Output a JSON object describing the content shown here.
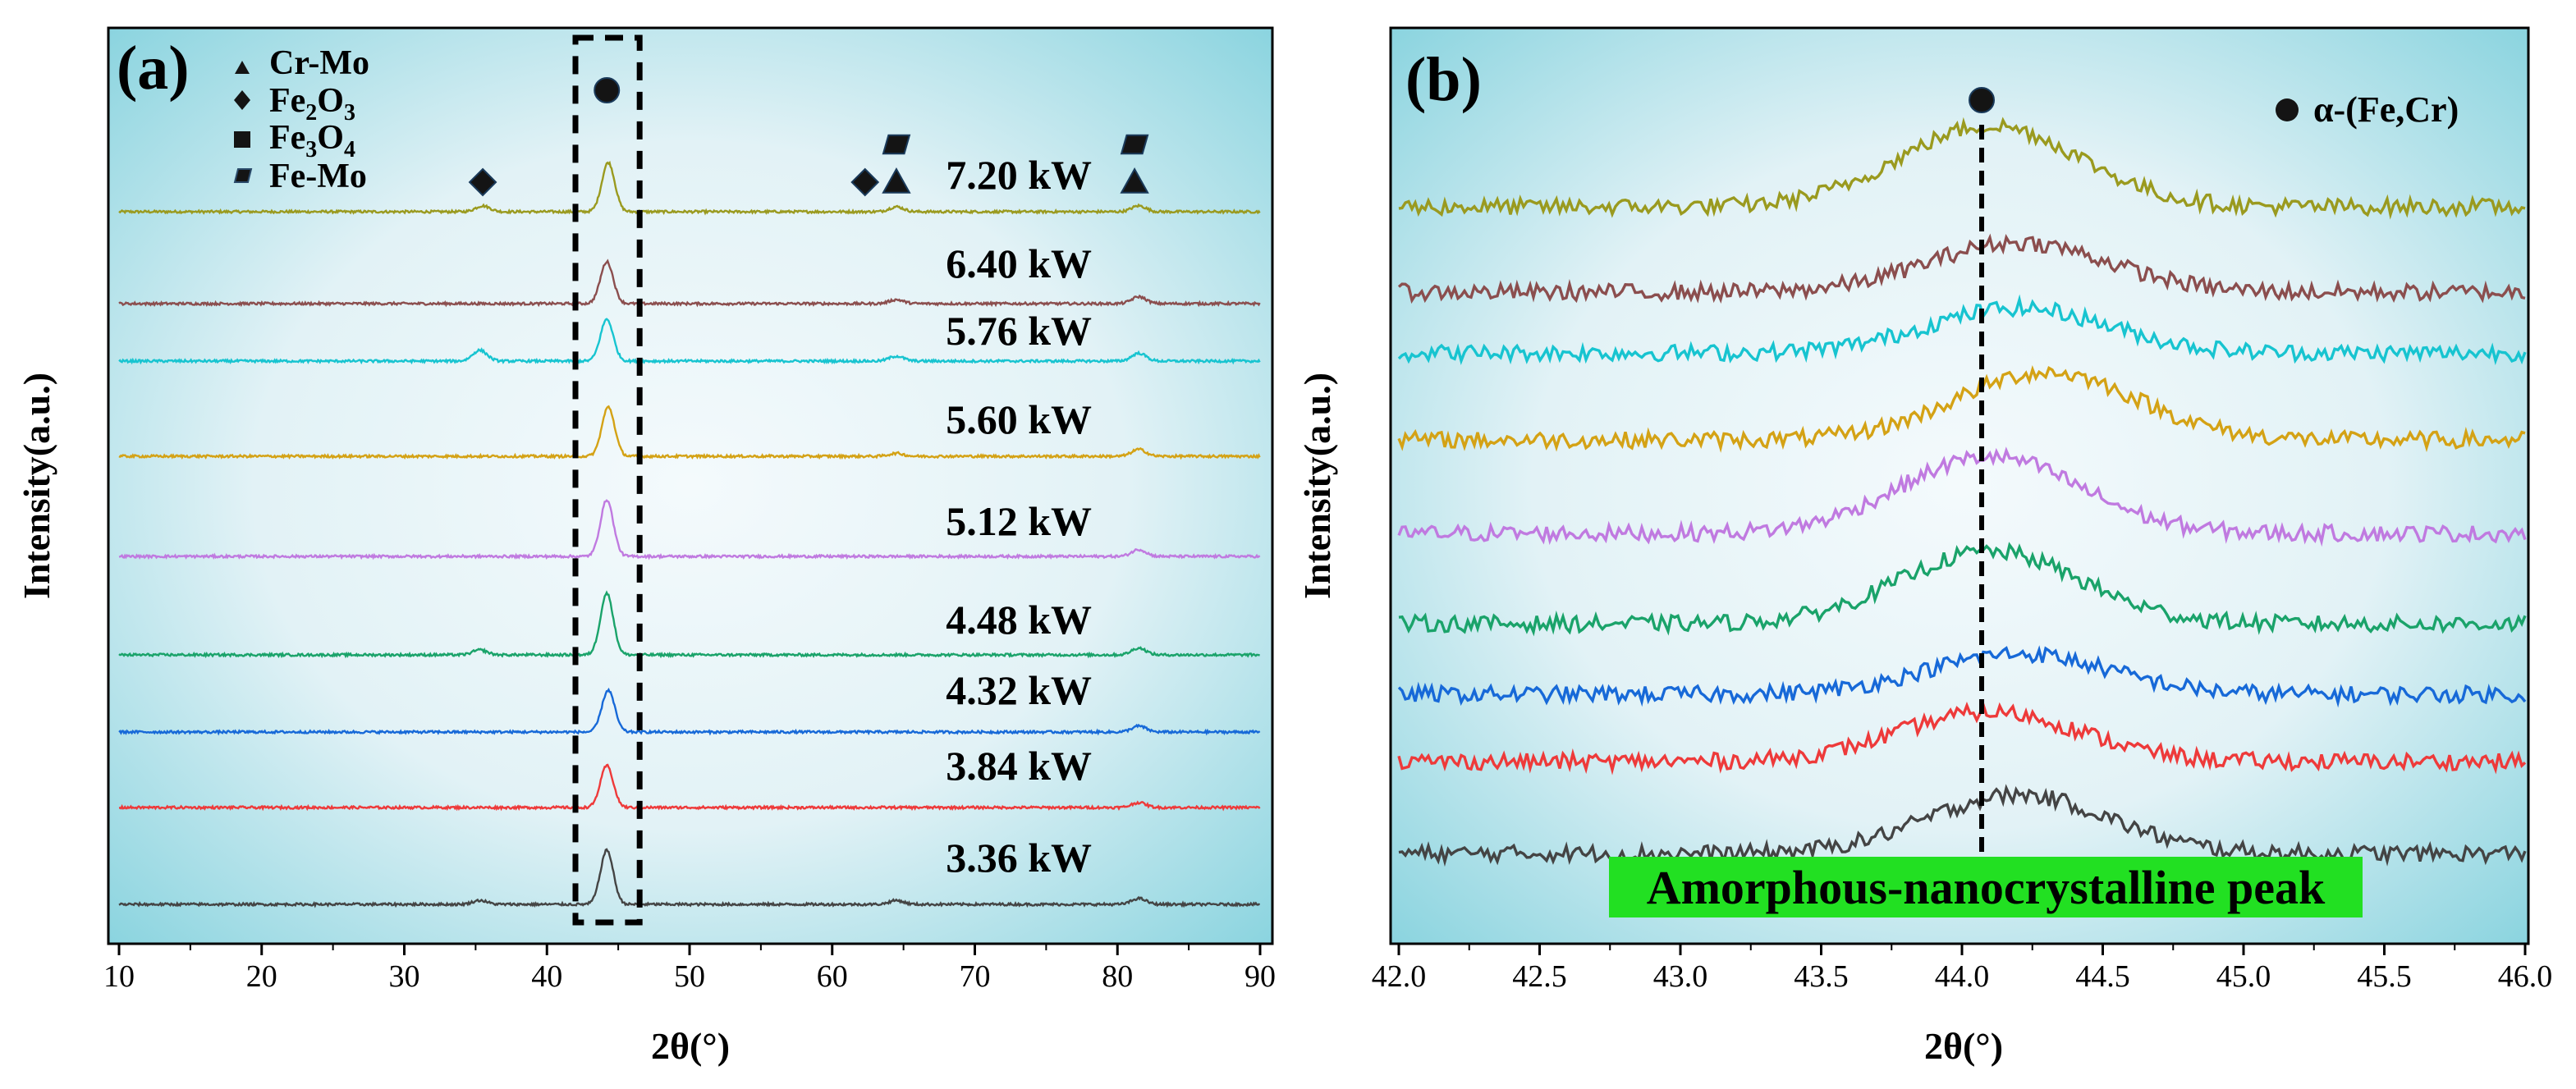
{
  "chart_data": [
    {
      "panel": "(a)",
      "type": "line",
      "title": "",
      "xlabel": "2θ(°)",
      "ylabel": "Intensity(a.u.)",
      "xlim": [
        10,
        90
      ],
      "xticks": [
        10,
        20,
        30,
        40,
        50,
        60,
        70,
        80,
        90
      ],
      "yticks": [],
      "legend": [
        {
          "marker": "triangle",
          "label": "Cr-Mo",
          "main": "Cr-Mo",
          "sub": ""
        },
        {
          "marker": "diamond",
          "label": "Fe2O3",
          "main": "Fe",
          "sub": "2",
          "main2": "O",
          "sub2": "3"
        },
        {
          "marker": "square",
          "label": "Fe3O4",
          "main": "Fe",
          "sub": "3",
          "main2": "O",
          "sub2": "4"
        },
        {
          "marker": "parallelogram",
          "label": "Fe-Mo",
          "main": "Fe-Mo",
          "sub": ""
        }
      ],
      "main_peak_marker": "circle",
      "highlight_box_x_range": [
        42,
        46.5
      ],
      "series": [
        {
          "name": "7.20 kW",
          "color": "#9a9a1f",
          "peaks": [
            {
              "x": 44.3,
              "h": 1.0
            },
            {
              "x": 35.5,
              "h": 0.12
            },
            {
              "x": 64.5,
              "h": 0.1
            },
            {
              "x": 81.5,
              "h": 0.12
            }
          ]
        },
        {
          "name": "6.40 kW",
          "color": "#8b4e4e",
          "peaks": [
            {
              "x": 44.2,
              "h": 0.85
            },
            {
              "x": 64.5,
              "h": 0.08
            },
            {
              "x": 81.5,
              "h": 0.14
            }
          ]
        },
        {
          "name": "5.76 kW",
          "color": "#17c4d0",
          "peaks": [
            {
              "x": 44.2,
              "h": 0.85
            },
            {
              "x": 35.3,
              "h": 0.22
            },
            {
              "x": 64.5,
              "h": 0.1
            },
            {
              "x": 81.5,
              "h": 0.16
            }
          ]
        },
        {
          "name": "5.60 kW",
          "color": "#d4a215",
          "peaks": [
            {
              "x": 44.3,
              "h": 1.0
            },
            {
              "x": 64.5,
              "h": 0.06
            },
            {
              "x": 81.5,
              "h": 0.14
            }
          ]
        },
        {
          "name": "5.12 kW",
          "color": "#c07ae0",
          "peaks": [
            {
              "x": 44.2,
              "h": 1.15
            },
            {
              "x": 81.5,
              "h": 0.14
            }
          ]
        },
        {
          "name": "4.48 kW",
          "color": "#1aa36a",
          "peaks": [
            {
              "x": 44.2,
              "h": 1.25
            },
            {
              "x": 35.3,
              "h": 0.1
            },
            {
              "x": 81.5,
              "h": 0.14
            }
          ]
        },
        {
          "name": "4.32 kW",
          "color": "#1769d8",
          "peaks": [
            {
              "x": 44.3,
              "h": 0.85
            },
            {
              "x": 81.5,
              "h": 0.12
            }
          ]
        },
        {
          "name": "3.84 kW",
          "color": "#ee3a3a",
          "peaks": [
            {
              "x": 44.2,
              "h": 0.85
            },
            {
              "x": 81.5,
              "h": 0.1
            }
          ]
        },
        {
          "name": "3.36 kW",
          "color": "#444444",
          "peaks": [
            {
              "x": 44.2,
              "h": 1.1
            },
            {
              "x": 35.3,
              "h": 0.08
            },
            {
              "x": 64.5,
              "h": 0.08
            },
            {
              "x": 81.5,
              "h": 0.12
            }
          ]
        }
      ],
      "annotations": [
        {
          "marker": "diamond",
          "x": 35.5,
          "series": "7.20 kW"
        },
        {
          "marker": "circle",
          "x": 44.2,
          "series": "7.20 kW"
        },
        {
          "marker": "diamond",
          "x": 62.3,
          "series": "7.20 kW"
        },
        {
          "marker": "triangle",
          "x": 64.5,
          "series": "7.20 kW"
        },
        {
          "marker": "parallelogram",
          "x": 64.5,
          "series": "7.20 kW"
        },
        {
          "marker": "parallelogram",
          "x": 81.2,
          "series": "7.20 kW"
        },
        {
          "marker": "triangle",
          "x": 81.2,
          "series": "7.20 kW"
        }
      ]
    },
    {
      "panel": "(b)",
      "type": "line",
      "title": "",
      "xlabel": "2θ(°)",
      "ylabel": "Intensity(a.u.)",
      "xlim": [
        42.0,
        46.0
      ],
      "xticks": [
        "42.0",
        "42.5",
        "43.0",
        "43.5",
        "44.0",
        "44.5",
        "45.0",
        "45.5",
        "46.0"
      ],
      "yticks": [],
      "legend": [
        {
          "marker": "circle",
          "label": "α-(Fe,Cr)"
        }
      ],
      "reference_line_x": 44.07,
      "annotation_box": "Amorphous-nanocrystalline peak",
      "annotation_box_color": "#22e022",
      "series": [
        {
          "name": "7.20 kW",
          "color": "#9a9a1f",
          "center": 44.1,
          "height": 0.9
        },
        {
          "name": "6.40 kW",
          "color": "#8b4e4e",
          "center": 44.2,
          "height": 0.55
        },
        {
          "name": "5.76 kW",
          "color": "#17c4d0",
          "center": 44.2,
          "height": 0.5
        },
        {
          "name": "5.60 kW",
          "color": "#d4a215",
          "center": 44.3,
          "height": 0.75
        },
        {
          "name": "5.12 kW",
          "color": "#c07ae0",
          "center": 44.1,
          "height": 0.85
        },
        {
          "name": "4.48 kW",
          "color": "#1aa36a",
          "center": 44.1,
          "height": 0.8
        },
        {
          "name": "4.32 kW",
          "color": "#1769d8",
          "center": 44.2,
          "height": 0.45
        },
        {
          "name": "3.84 kW",
          "color": "#ee3a3a",
          "center": 44.1,
          "height": 0.55
        },
        {
          "name": "3.36 kW",
          "color": "#444444",
          "center": 44.2,
          "height": 0.65
        }
      ]
    }
  ]
}
